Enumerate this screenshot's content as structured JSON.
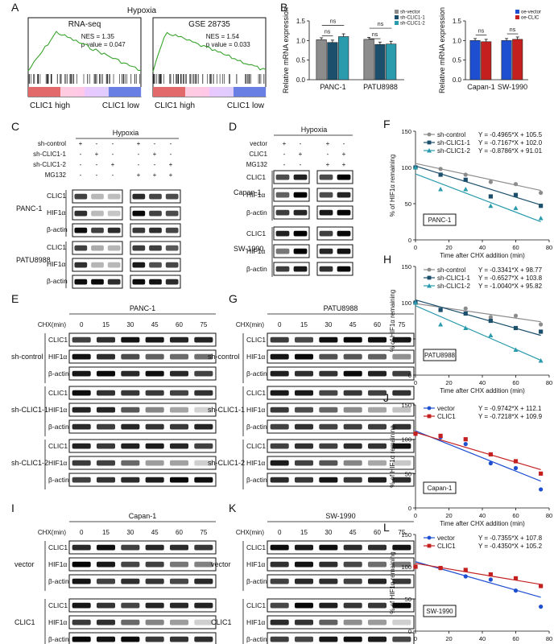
{
  "figure": {
    "panelA": {
      "letter": "A",
      "title": "Hypoxia",
      "plots": [
        {
          "title": "RNA-seq",
          "nes": "NES = 1.35",
          "pval": "p value = 0.047",
          "left": "CLIC1 high",
          "right": "CLIC1 low"
        },
        {
          "title": "GSE 28735",
          "nes": "NES = 1.54",
          "pval": "p value = 0.033",
          "left": "CLIC1 high",
          "right": "CLIC1 low"
        }
      ]
    },
    "panelB": {
      "letter": "B",
      "ns": "ns",
      "colors": {
        "grey": "#8c8c8c",
        "navy": "#1b4f6b",
        "teal": "#2a9bad",
        "blue": "#1e4fd1",
        "red": "#c42020"
      }
    },
    "panelC": {
      "letter": "C",
      "header": "Hypoxia",
      "rows": [
        "sh-control",
        "sh-CLIC1-1",
        "sh-CLIC1-2",
        "MG132"
      ],
      "signs": [
        [
          "+",
          "-",
          "-",
          "+",
          "-",
          "-"
        ],
        [
          "-",
          "+",
          "-",
          "-",
          "+",
          "-"
        ],
        [
          "-",
          "-",
          "+",
          "-",
          "-",
          "+"
        ],
        [
          "-",
          "-",
          "-",
          "+",
          "+",
          "+"
        ]
      ],
      "groups": [
        "PANC-1",
        "PATU8988"
      ],
      "bands": [
        "CLIC1",
        "HIF1α",
        "β-actin"
      ]
    },
    "panelD": {
      "letter": "D",
      "header": "Hypoxia",
      "rows": [
        "vector",
        "CLIC1",
        "MG132"
      ],
      "signs": [
        [
          "+",
          "-",
          "+",
          "-"
        ],
        [
          "-",
          "+",
          "-",
          "+"
        ],
        [
          "-",
          "-",
          "+",
          "+"
        ]
      ],
      "groups": [
        "Capan-1",
        "SW-1990"
      ],
      "bands": [
        "CLIC1",
        "HIF1α",
        "β-actin"
      ]
    },
    "westerns": [
      {
        "letter": "E",
        "title": "PANC-1",
        "groups": [
          "sh-control",
          "sh-CLIC1-1",
          "sh-CLIC1-2"
        ]
      },
      {
        "letter": "G",
        "title": "PATU8988",
        "groups": [
          "sh-control",
          "sh-CLIC1-1",
          "sh-CLIC1-2"
        ]
      },
      {
        "letter": "I",
        "title": "Capan-1",
        "groups": [
          "vector",
          "CLIC1"
        ]
      },
      {
        "letter": "K",
        "title": "SW-1990",
        "groups": [
          "vector",
          "CLIC1"
        ]
      }
    ],
    "cells": {
      "chx_label": "CHX(min)",
      "times": [
        "0",
        "15",
        "30",
        "45",
        "60",
        "75"
      ],
      "bands": [
        "CLIC1",
        "HIF1α",
        "β-actin"
      ]
    }
  },
  "chart_data": [
    {
      "type": "bar",
      "panel": "B-left",
      "ylabel": "Relative mRNA expression",
      "ylim": [
        0,
        1.5
      ],
      "yticks": [
        "0.0",
        "0.5",
        "1.0",
        "1.5"
      ],
      "categories": [
        "PANC-1",
        "PATU8988"
      ],
      "series": [
        {
          "name": "sh-vector",
          "values": [
            1.02,
            1.03
          ],
          "color": "#8c8c8c"
        },
        {
          "name": "sh-CLIC1-1",
          "values": [
            0.95,
            0.9
          ],
          "color": "#1b4f6b"
        },
        {
          "name": "sh-CLIC1-2",
          "values": [
            1.1,
            0.91
          ],
          "color": "#2a9bad"
        }
      ]
    },
    {
      "type": "bar",
      "panel": "B-right",
      "ylabel": "Relative mRNA expression",
      "ylim": [
        0,
        1.5
      ],
      "yticks": [
        "0.0",
        "0.5",
        "1.0",
        "1.5"
      ],
      "categories": [
        "Capan-1",
        "SW-1990"
      ],
      "series": [
        {
          "name": "oe-vector",
          "values": [
            1.0,
            1.0
          ],
          "color": "#1e4fd1"
        },
        {
          "name": "oe-CLIC",
          "values": [
            0.97,
            1.03
          ],
          "color": "#c42020"
        }
      ]
    },
    {
      "type": "scatter",
      "panel": "F",
      "label": "PANC-1",
      "xlabel": "Time after CHX addition (min)",
      "ylabel": "% of HIF1α remaining",
      "xlim": [
        0,
        80
      ],
      "ylim": [
        0,
        150
      ],
      "x": [
        0,
        15,
        30,
        45,
        60,
        75
      ],
      "series": [
        {
          "name": "sh-control",
          "equation": "Y = -0.4965*X + 105.5",
          "marker": "circle",
          "color": "#8c8c8c",
          "values": [
            100,
            98,
            90,
            80,
            77,
            65
          ],
          "slope": -0.4965,
          "intercept": 105.5
        },
        {
          "name": "sh-CLIC1-1",
          "equation": "Y = -0.7167*X + 102.0",
          "marker": "square",
          "color": "#1b4f6b",
          "values": [
            100,
            90,
            83,
            60,
            62,
            47
          ],
          "slope": -0.7167,
          "intercept": 102.0
        },
        {
          "name": "sh-CLIC1-2",
          "equation": "Y = -0.8786*X + 91.01",
          "marker": "triangle",
          "color": "#2a9bad",
          "values": [
            100,
            70,
            70,
            47,
            44,
            30
          ],
          "slope": -0.8786,
          "intercept": 91.01
        }
      ]
    },
    {
      "type": "scatter",
      "panel": "H",
      "label": "PATU8988",
      "xlabel": "Time after CHX addition (min)",
      "ylabel": "% of HIF1α remaining",
      "xlim": [
        0,
        80
      ],
      "ylim": [
        0,
        150
      ],
      "x": [
        0,
        15,
        30,
        45,
        60,
        75
      ],
      "series": [
        {
          "name": "sh-control",
          "equation": "Y = -0.3341*X + 98.77",
          "marker": "circle",
          "color": "#8c8c8c",
          "values": [
            100,
            90,
            92,
            80,
            82,
            70
          ],
          "slope": -0.3341,
          "intercept": 98.77
        },
        {
          "name": "sh-CLIC1-1",
          "equation": "Y = -0.6527*X + 103.8",
          "marker": "square",
          "color": "#1b4f6b",
          "values": [
            100,
            90,
            85,
            75,
            65,
            60
          ],
          "slope": -0.6527,
          "intercept": 103.8
        },
        {
          "name": "sh-CLIC1-2",
          "equation": "Y = -1.0040*X + 95.82",
          "marker": "triangle",
          "color": "#2a9bad",
          "values": [
            100,
            70,
            65,
            55,
            35,
            20
          ],
          "slope": -1.004,
          "intercept": 95.82
        }
      ]
    },
    {
      "type": "scatter",
      "panel": "J",
      "label": "Capan-1",
      "xlabel": "Time after CHX addition (min)",
      "ylabel": "% of HIF1α remaining",
      "xlim": [
        0,
        80
      ],
      "ylim": [
        0,
        150
      ],
      "x": [
        0,
        15,
        30,
        45,
        60,
        75
      ],
      "series": [
        {
          "name": "vector",
          "equation": "Y = -0.9742*X + 112.1",
          "marker": "circle",
          "color": "#1e4fd1",
          "values": [
            108,
            103,
            93,
            65,
            58,
            27
          ],
          "slope": -0.9742,
          "intercept": 112.1
        },
        {
          "name": "CLIC1",
          "equation": "Y = -0.7218*X + 109.9",
          "marker": "square",
          "color": "#c42020",
          "values": [
            108,
            105,
            100,
            78,
            68,
            50
          ],
          "slope": -0.7218,
          "intercept": 109.9
        }
      ]
    },
    {
      "type": "scatter",
      "panel": "L",
      "label": "SW-1990",
      "xlabel": "Time after CHX addition (min)",
      "ylabel": "% of HIF1α remaining",
      "xlim": [
        0,
        80
      ],
      "ylim": [
        0,
        150
      ],
      "x": [
        0,
        15,
        30,
        45,
        60,
        75
      ],
      "series": [
        {
          "name": "vector",
          "equation": "Y = -0.7355*X + 107.8",
          "marker": "circle",
          "color": "#1e4fd1",
          "values": [
            100,
            98,
            85,
            80,
            63,
            38
          ],
          "slope": -0.7355,
          "intercept": 107.8
        },
        {
          "name": "CLIC1",
          "equation": "Y = -0.4350*X + 105.2",
          "marker": "square",
          "color": "#c42020",
          "values": [
            100,
            98,
            95,
            88,
            82,
            70
          ],
          "slope": -0.435,
          "intercept": 105.2
        }
      ]
    }
  ]
}
